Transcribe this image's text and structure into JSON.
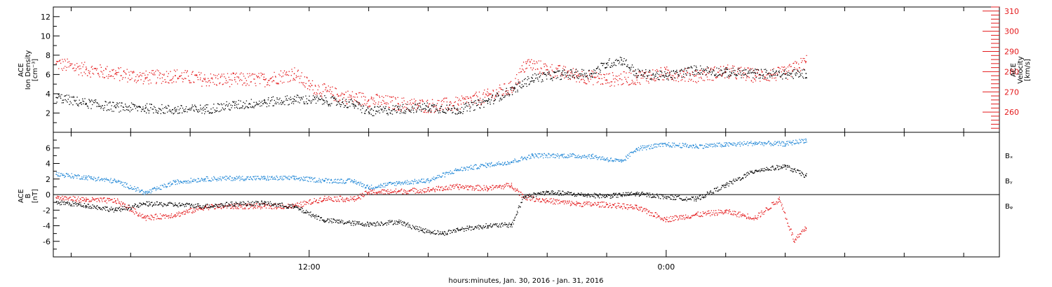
{
  "colors": {
    "axis": "#000000",
    "density": "#000000",
    "velocity": "#e41a1c",
    "bx": "#000000",
    "by": "#1f86d6",
    "bz": "#e41a1c"
  },
  "x_axis": {
    "label": "hours:minutes, Jan. 30, 2016 - Jan. 31, 2016",
    "major_ticks": [
      {
        "hour": 12,
        "label": "12:00"
      },
      {
        "hour": 24,
        "label": "0:00"
      }
    ],
    "range_hours": [
      3.4,
      35.2
    ]
  },
  "chart_data": [
    {
      "type": "scatter",
      "panel": "top",
      "left_axis_title": [
        "ACE",
        "Ion Density",
        "[cm⁻³]"
      ],
      "right_axis_title": [
        "ACE",
        "Velocity",
        "[km/s]"
      ],
      "left_ylim": [
        0,
        13
      ],
      "left_ticks": [
        2,
        4,
        6,
        8,
        10,
        12
      ],
      "right_ylim": [
        250,
        312
      ],
      "right_ticks": [
        260,
        270,
        280,
        290,
        300,
        310
      ],
      "x_unit": "hours since Jan. 30, 2016 0:00",
      "series": [
        {
          "key": "density",
          "axis": "left",
          "color": "#000000",
          "points": [
            [
              3.5,
              3.6
            ],
            [
              4.5,
              3.0
            ],
            [
              5.5,
              2.6
            ],
            [
              6.5,
              2.5
            ],
            [
              7.5,
              2.3
            ],
            [
              8.5,
              2.4
            ],
            [
              9.5,
              2.8
            ],
            [
              10.5,
              3.1
            ],
            [
              11.5,
              3.4
            ],
            [
              12.5,
              3.3
            ],
            [
              13.5,
              2.9
            ],
            [
              14.0,
              2.1
            ],
            [
              15.0,
              2.4
            ],
            [
              16.0,
              2.6
            ],
            [
              17.0,
              2.3
            ],
            [
              18.0,
              3.2
            ],
            [
              18.9,
              4.5
            ],
            [
              19.5,
              5.6
            ],
            [
              20.5,
              6.0
            ],
            [
              21.5,
              6.1
            ],
            [
              22.0,
              7.1
            ],
            [
              22.5,
              7.5
            ],
            [
              23.0,
              6.1
            ],
            [
              24.0,
              5.8
            ],
            [
              25.0,
              6.5
            ],
            [
              26.0,
              6.2
            ],
            [
              27.0,
              6.1
            ],
            [
              28.0,
              6.0
            ],
            [
              28.7,
              6.1
            ]
          ]
        },
        {
          "key": "velocity",
          "axis": "right",
          "color": "#e41a1c",
          "points": [
            [
              3.5,
              284
            ],
            [
              4.5,
              281
            ],
            [
              5.5,
              279
            ],
            [
              6.5,
              277
            ],
            [
              7.5,
              278
            ],
            [
              8.5,
              276
            ],
            [
              9.5,
              276
            ],
            [
              10.5,
              276
            ],
            [
              11.5,
              279
            ],
            [
              12.0,
              273
            ],
            [
              13.0,
              268
            ],
            [
              14.0,
              266
            ],
            [
              15.0,
              264
            ],
            [
              16.0,
              263
            ],
            [
              17.0,
              264
            ],
            [
              18.0,
              268
            ],
            [
              18.8,
              272
            ],
            [
              19.3,
              284
            ],
            [
              20.0,
              281
            ],
            [
              21.0,
              278
            ],
            [
              22.0,
              276
            ],
            [
              23.0,
              277
            ],
            [
              24.0,
              279
            ],
            [
              25.0,
              278
            ],
            [
              26.0,
              280
            ],
            [
              27.0,
              278
            ],
            [
              28.0,
              279
            ],
            [
              28.7,
              285
            ]
          ]
        }
      ]
    },
    {
      "type": "scatter",
      "panel": "bottom",
      "left_axis_title": [
        "ACE",
        "B",
        "[nT]"
      ],
      "ylim": [
        -8,
        8
      ],
      "yticks": [
        -6,
        -4,
        -2,
        0,
        2,
        4,
        6
      ],
      "x_unit": "hours since Jan. 30, 2016 0:00",
      "series": [
        {
          "key": "bx",
          "name": "Bₓ",
          "color": "#000000",
          "points": [
            [
              3.5,
              -1.0
            ],
            [
              4.5,
              -1.4
            ],
            [
              5.5,
              -2.0
            ],
            [
              6.5,
              -1.2
            ],
            [
              7.5,
              -1.3
            ],
            [
              8.5,
              -1.5
            ],
            [
              9.5,
              -1.2
            ],
            [
              10.5,
              -1.1
            ],
            [
              11.5,
              -1.6
            ],
            [
              12.5,
              -3.3
            ],
            [
              13.5,
              -3.7
            ],
            [
              14.0,
              -3.8
            ],
            [
              15.0,
              -3.5
            ],
            [
              15.8,
              -4.6
            ],
            [
              16.5,
              -5.0
            ],
            [
              17.0,
              -4.5
            ],
            [
              18.0,
              -4.0
            ],
            [
              18.8,
              -3.9
            ],
            [
              19.2,
              -0.3
            ],
            [
              20.0,
              0.3
            ],
            [
              21.0,
              0.0
            ],
            [
              22.0,
              -0.2
            ],
            [
              23.0,
              0.1
            ],
            [
              24.0,
              -0.3
            ],
            [
              25.0,
              -0.6
            ],
            [
              26.0,
              1.2
            ],
            [
              27.0,
              3.1
            ],
            [
              28.0,
              3.6
            ],
            [
              28.7,
              2.4
            ]
          ]
        },
        {
          "key": "by",
          "name": "Bᵧ",
          "color": "#1f86d6",
          "points": [
            [
              3.5,
              2.6
            ],
            [
              4.5,
              2.2
            ],
            [
              5.5,
              1.7
            ],
            [
              6.5,
              0.2
            ],
            [
              7.5,
              1.6
            ],
            [
              8.5,
              2.0
            ],
            [
              9.5,
              2.1
            ],
            [
              10.5,
              2.1
            ],
            [
              11.5,
              2.1
            ],
            [
              12.5,
              1.8
            ],
            [
              13.5,
              1.7
            ],
            [
              14.0,
              0.9
            ],
            [
              15.0,
              1.5
            ],
            [
              16.0,
              1.8
            ],
            [
              17.0,
              3.2
            ],
            [
              18.0,
              3.8
            ],
            [
              18.8,
              4.2
            ],
            [
              19.5,
              5.0
            ],
            [
              20.5,
              5.0
            ],
            [
              21.5,
              4.9
            ],
            [
              22.5,
              4.2
            ],
            [
              23.0,
              5.9
            ],
            [
              24.0,
              6.4
            ],
            [
              25.0,
              6.2
            ],
            [
              26.0,
              6.4
            ],
            [
              27.0,
              6.6
            ],
            [
              28.0,
              6.5
            ],
            [
              28.7,
              7.0
            ]
          ]
        },
        {
          "key": "bz",
          "name": "Bᵩ",
          "color": "#e41a1c",
          "points": [
            [
              3.5,
              -0.4
            ],
            [
              4.5,
              -0.7
            ],
            [
              5.5,
              -0.8
            ],
            [
              6.5,
              -3.0
            ],
            [
              7.5,
              -2.6
            ],
            [
              8.5,
              -1.6
            ],
            [
              9.5,
              -1.5
            ],
            [
              10.5,
              -1.5
            ],
            [
              11.5,
              -1.5
            ],
            [
              12.5,
              -0.5
            ],
            [
              13.5,
              -0.6
            ],
            [
              14.0,
              0.3
            ],
            [
              15.0,
              0.4
            ],
            [
              16.0,
              0.6
            ],
            [
              17.0,
              1.0
            ],
            [
              18.0,
              0.8
            ],
            [
              18.8,
              1.2
            ],
            [
              19.2,
              -0.3
            ],
            [
              20.0,
              -0.8
            ],
            [
              21.0,
              -1.2
            ],
            [
              22.0,
              -1.3
            ],
            [
              23.0,
              -1.7
            ],
            [
              24.0,
              -3.2
            ],
            [
              25.0,
              -2.6
            ],
            [
              26.0,
              -2.2
            ],
            [
              27.0,
              -3.0
            ],
            [
              27.8,
              -0.6
            ],
            [
              28.3,
              -6.0
            ],
            [
              28.7,
              -4.3
            ]
          ]
        }
      ]
    }
  ]
}
